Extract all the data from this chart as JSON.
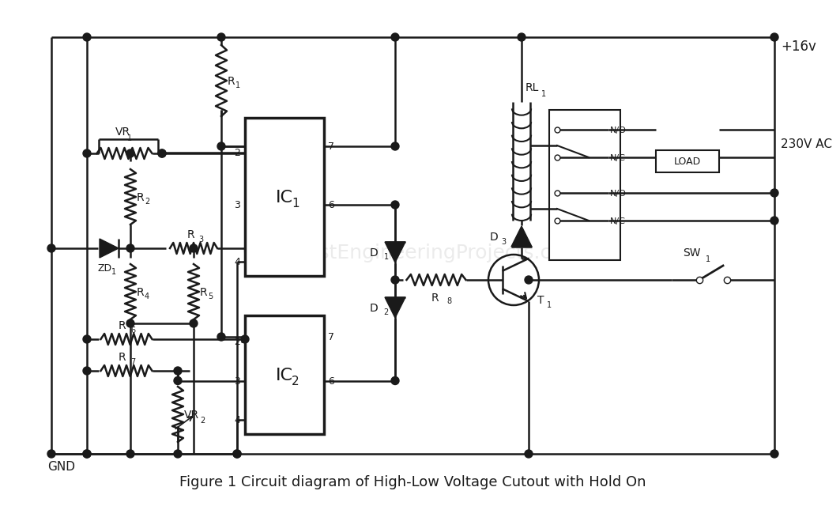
{
  "title": "Figure 1 Circuit diagram of High-Low Voltage Cutout with Hold On",
  "bg_color": "#ffffff",
  "line_color": "#1a1a1a",
  "watermark": "www.bestEngineeringProjects.com",
  "labels": {
    "R1": "R",
    "R1sub": "1",
    "R2": "R",
    "R2sub": "2",
    "R3": "R",
    "R3sub": "3",
    "R4": "R",
    "R4sub": "4",
    "R5": "R",
    "R5sub": "5",
    "R6": "R",
    "R6sub": "6",
    "R7": "R",
    "R7sub": "7",
    "R8": "R",
    "R8sub": "8",
    "VR1": "VR",
    "VR1sub": "1",
    "VR2": "VR",
    "VR2sub": "2",
    "ZD1": "ZD",
    "ZD1sub": "1",
    "D1": "D",
    "D1sub": "1",
    "D2": "D",
    "D2sub": "2",
    "D3": "D",
    "D3sub": "3",
    "IC1": "IC",
    "IC1sub": "1",
    "IC2": "IC",
    "IC2sub": "2",
    "RL1": "RL",
    "RL1sub": "1",
    "T1": "T",
    "T1sub": "1",
    "SW1": "SW",
    "SW1sub": "1",
    "VCC": "+16v",
    "GND": "GND",
    "LOAD": "LOAD",
    "AC": "230V AC",
    "NO": "N/O",
    "NC": "N/C"
  }
}
